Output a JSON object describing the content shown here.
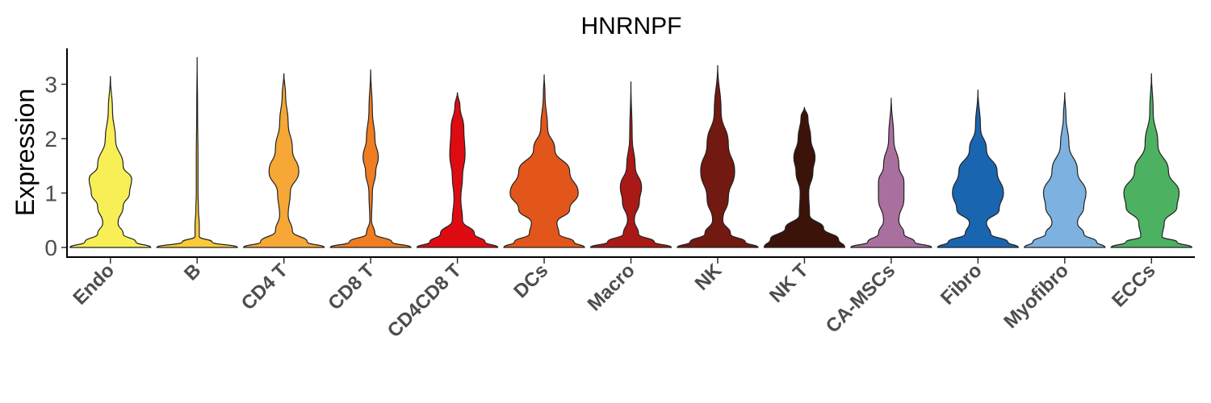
{
  "chart_data": {
    "type": "violin",
    "title": "HNRNPF",
    "xlabel": "",
    "ylabel": "Expression",
    "ylim": [
      -0.2,
      3.65
    ],
    "yticks": [
      0,
      1,
      2,
      3
    ],
    "grid": false,
    "legend": "none",
    "categories": [
      "Endo",
      "B",
      "CD4 T",
      "CD8 T",
      "CD4CD8 T",
      "DCs",
      "Macro",
      "NK",
      "NK T",
      "CA-MSCs",
      "Fibro",
      "Myofibro",
      "ECCs"
    ],
    "series": [
      {
        "category": "Endo",
        "color": "#F8EF57",
        "max": 3.15,
        "width_profile": [
          [
            0.0,
            0.95
          ],
          [
            0.1,
            0.6
          ],
          [
            0.25,
            0.3
          ],
          [
            0.45,
            0.18
          ],
          [
            0.75,
            0.3
          ],
          [
            1.0,
            0.45
          ],
          [
            1.25,
            0.5
          ],
          [
            1.5,
            0.3
          ],
          [
            2.0,
            0.12
          ],
          [
            2.5,
            0.05
          ],
          [
            3.15,
            0.0
          ]
        ]
      },
      {
        "category": "B",
        "color": "#F9CB38",
        "max": 3.5,
        "width_profile": [
          [
            0.0,
            0.95
          ],
          [
            0.1,
            0.35
          ],
          [
            0.2,
            0.05
          ],
          [
            0.4,
            0.05
          ],
          [
            0.7,
            0.03
          ],
          [
            1.0,
            0.02
          ],
          [
            1.6,
            0.02
          ],
          [
            2.5,
            0.01
          ],
          [
            3.5,
            0.0
          ]
        ]
      },
      {
        "category": "CD4 T",
        "color": "#F6A735",
        "max": 3.2,
        "width_profile": [
          [
            0.0,
            0.95
          ],
          [
            0.1,
            0.55
          ],
          [
            0.3,
            0.2
          ],
          [
            0.6,
            0.1
          ],
          [
            1.0,
            0.15
          ],
          [
            1.4,
            0.35
          ],
          [
            1.8,
            0.2
          ],
          [
            2.3,
            0.1
          ],
          [
            2.8,
            0.04
          ],
          [
            3.2,
            0.0
          ]
        ]
      },
      {
        "category": "CD8 T",
        "color": "#EF7D22",
        "max": 3.27,
        "width_profile": [
          [
            0.0,
            0.95
          ],
          [
            0.1,
            0.5
          ],
          [
            0.25,
            0.1
          ],
          [
            0.5,
            0.02
          ],
          [
            1.0,
            0.04
          ],
          [
            1.4,
            0.12
          ],
          [
            1.65,
            0.18
          ],
          [
            2.0,
            0.1
          ],
          [
            2.5,
            0.04
          ],
          [
            3.27,
            0.0
          ]
        ]
      },
      {
        "category": "CD4CD8 T",
        "color": "#DE0C12",
        "max": 2.85,
        "width_profile": [
          [
            0.0,
            0.95
          ],
          [
            0.1,
            0.65
          ],
          [
            0.25,
            0.4
          ],
          [
            0.5,
            0.12
          ],
          [
            0.9,
            0.08
          ],
          [
            1.3,
            0.12
          ],
          [
            1.7,
            0.18
          ],
          [
            2.2,
            0.15
          ],
          [
            2.6,
            0.06
          ],
          [
            2.85,
            0.0
          ]
        ]
      },
      {
        "category": "DCs",
        "color": "#E3561B",
        "max": 3.18,
        "width_profile": [
          [
            0.0,
            0.95
          ],
          [
            0.1,
            0.7
          ],
          [
            0.25,
            0.35
          ],
          [
            0.45,
            0.3
          ],
          [
            0.7,
            0.6
          ],
          [
            1.0,
            0.8
          ],
          [
            1.4,
            0.6
          ],
          [
            1.8,
            0.25
          ],
          [
            2.2,
            0.08
          ],
          [
            2.8,
            0.02
          ],
          [
            3.18,
            0.0
          ]
        ]
      },
      {
        "category": "Macro",
        "color": "#A91916",
        "max": 3.05,
        "width_profile": [
          [
            0.0,
            0.95
          ],
          [
            0.1,
            0.55
          ],
          [
            0.25,
            0.18
          ],
          [
            0.5,
            0.08
          ],
          [
            0.85,
            0.2
          ],
          [
            1.1,
            0.25
          ],
          [
            1.5,
            0.1
          ],
          [
            2.0,
            0.03
          ],
          [
            3.05,
            0.0
          ]
        ]
      },
      {
        "category": "NK",
        "color": "#721911",
        "max": 3.35,
        "width_profile": [
          [
            0.0,
            0.95
          ],
          [
            0.1,
            0.65
          ],
          [
            0.25,
            0.3
          ],
          [
            0.5,
            0.12
          ],
          [
            0.9,
            0.25
          ],
          [
            1.4,
            0.4
          ],
          [
            1.9,
            0.25
          ],
          [
            2.5,
            0.08
          ],
          [
            3.35,
            0.0
          ]
        ]
      },
      {
        "category": "NK T",
        "color": "#3B1309",
        "max": 2.58,
        "width_profile": [
          [
            0.0,
            0.95
          ],
          [
            0.15,
            0.8
          ],
          [
            0.35,
            0.45
          ],
          [
            0.6,
            0.12
          ],
          [
            1.0,
            0.1
          ],
          [
            1.4,
            0.2
          ],
          [
            1.65,
            0.25
          ],
          [
            2.0,
            0.15
          ],
          [
            2.4,
            0.08
          ],
          [
            2.58,
            0.0
          ]
        ]
      },
      {
        "category": "CA-MSCs",
        "color": "#A9709F",
        "max": 2.75,
        "width_profile": [
          [
            0.0,
            0.95
          ],
          [
            0.1,
            0.55
          ],
          [
            0.25,
            0.3
          ],
          [
            0.5,
            0.18
          ],
          [
            0.9,
            0.3
          ],
          [
            1.2,
            0.3
          ],
          [
            1.5,
            0.18
          ],
          [
            2.0,
            0.06
          ],
          [
            2.75,
            0.0
          ]
        ]
      },
      {
        "category": "Fibro",
        "color": "#1A65B0",
        "max": 2.9,
        "width_profile": [
          [
            0.0,
            0.95
          ],
          [
            0.1,
            0.7
          ],
          [
            0.25,
            0.3
          ],
          [
            0.45,
            0.2
          ],
          [
            0.7,
            0.5
          ],
          [
            1.0,
            0.6
          ],
          [
            1.4,
            0.45
          ],
          [
            1.8,
            0.2
          ],
          [
            2.2,
            0.06
          ],
          [
            2.9,
            0.0
          ]
        ]
      },
      {
        "category": "Myofibro",
        "color": "#7DB1DF",
        "max": 2.85,
        "width_profile": [
          [
            0.0,
            0.95
          ],
          [
            0.1,
            0.75
          ],
          [
            0.25,
            0.45
          ],
          [
            0.45,
            0.3
          ],
          [
            0.75,
            0.45
          ],
          [
            1.0,
            0.5
          ],
          [
            1.4,
            0.3
          ],
          [
            1.9,
            0.1
          ],
          [
            2.4,
            0.03
          ],
          [
            2.85,
            0.0
          ]
        ]
      },
      {
        "category": "ECCs",
        "color": "#4CB262",
        "max": 3.2,
        "width_profile": [
          [
            0.0,
            0.95
          ],
          [
            0.1,
            0.6
          ],
          [
            0.2,
            0.25
          ],
          [
            0.45,
            0.3
          ],
          [
            0.75,
            0.6
          ],
          [
            1.0,
            0.65
          ],
          [
            1.4,
            0.4
          ],
          [
            1.9,
            0.15
          ],
          [
            2.5,
            0.04
          ],
          [
            3.2,
            0.0
          ]
        ]
      }
    ]
  }
}
